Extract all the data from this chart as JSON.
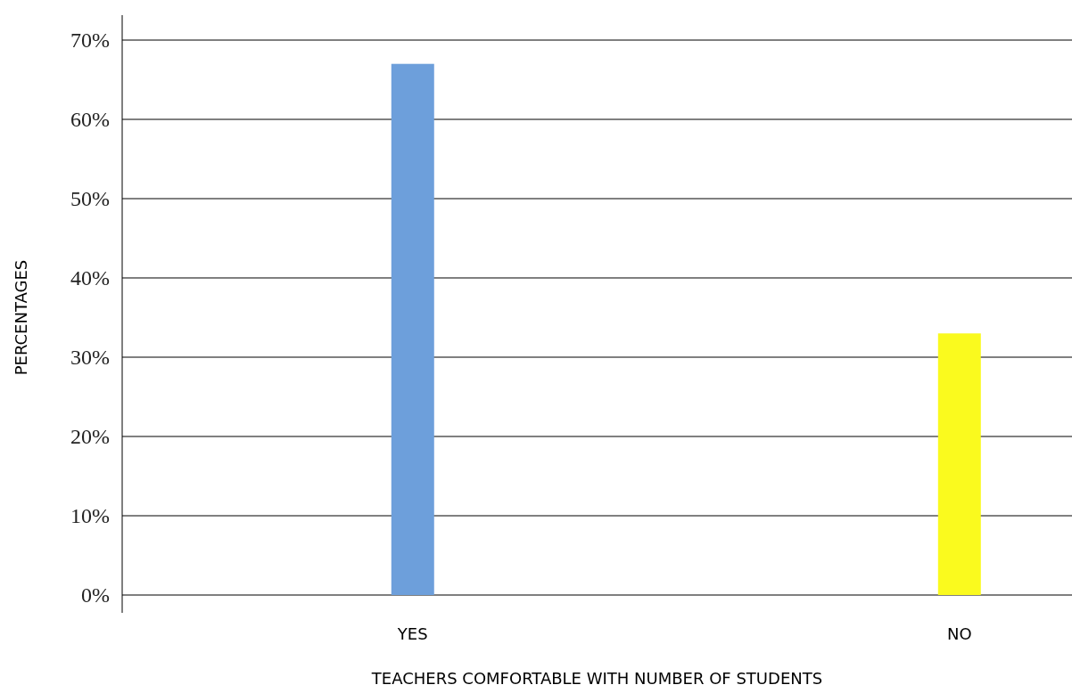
{
  "chart_data": {
    "type": "bar",
    "xlabel": "TEACHERS COMFORTABLE WITH NUMBER OF STUDENTS",
    "ylabel": "PERCENTAGES",
    "categories": [
      "YES",
      "NO"
    ],
    "values": [
      67,
      33
    ],
    "colors": [
      "#6d9fdb",
      "#fafa1e"
    ],
    "ylim": [
      0,
      70
    ],
    "yticks": [
      {
        "value": 0,
        "label": "0%"
      },
      {
        "value": 10,
        "label": "10%"
      },
      {
        "value": 20,
        "label": "20%"
      },
      {
        "value": 30,
        "label": "30%"
      },
      {
        "value": 40,
        "label": "40%"
      },
      {
        "value": 50,
        "label": "50%"
      },
      {
        "value": 60,
        "label": "60%"
      },
      {
        "value": 70,
        "label": "70%"
      }
    ],
    "grid": "y"
  }
}
